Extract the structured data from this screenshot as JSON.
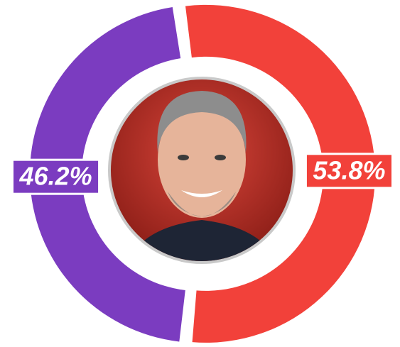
{
  "chart_data": {
    "type": "pie",
    "donut": true,
    "values": [
      53.8,
      46.2
    ],
    "value_labels": [
      "53.8%",
      "46.2%"
    ],
    "colors": [
      "#f2413a",
      "#7b3cc0"
    ]
  }
}
